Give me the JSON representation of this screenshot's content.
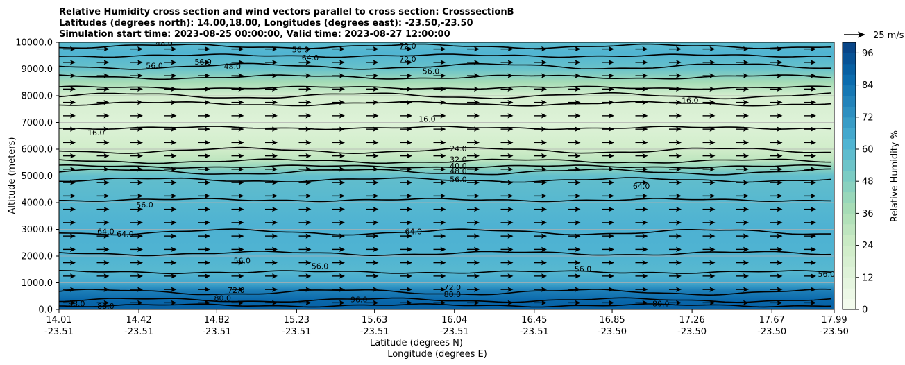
{
  "chart_data": {
    "type": "contour",
    "title_lines": [
      "Relative Humidity cross section and wind vectors parallel to cross section: CrosssectionB",
      "Latitudes (degrees north): 14.00,18.00, Longitudes (degrees east): -23.50,-23.50",
      "Simulation start time: 2023-08-25 00:00:00, Valid time: 2023-08-27 12:00:00"
    ],
    "xlabel_lines": [
      "Latitude (degrees N)",
      "Longitude (degrees E)"
    ],
    "ylabel": "Altitude (meters)",
    "xlim": [
      14.01,
      17.99
    ],
    "ylim": [
      0,
      10000
    ],
    "x_ticks": [
      {
        "lat": "14.01",
        "lon": "-23.51",
        "value": 14.01
      },
      {
        "lat": "14.42",
        "lon": "-23.51",
        "value": 14.42
      },
      {
        "lat": "14.82",
        "lon": "-23.51",
        "value": 14.82
      },
      {
        "lat": "15.23",
        "lon": "-23.51",
        "value": 15.23
      },
      {
        "lat": "15.63",
        "lon": "-23.51",
        "value": 15.63
      },
      {
        "lat": "16.04",
        "lon": "-23.51",
        "value": 16.04
      },
      {
        "lat": "16.45",
        "lon": "-23.51",
        "value": 16.45
      },
      {
        "lat": "16.85",
        "lon": "-23.50",
        "value": 16.85
      },
      {
        "lat": "17.26",
        "lon": "-23.50",
        "value": 17.26
      },
      {
        "lat": "17.67",
        "lon": "-23.50",
        "value": 17.67
      },
      {
        "lat": "17.99",
        "lon": "-23.50",
        "value": 17.99
      }
    ],
    "y_ticks": [
      "0.0",
      "1000.0",
      "2000.0",
      "3000.0",
      "4000.0",
      "5000.0",
      "6000.0",
      "7000.0",
      "8000.0",
      "9000.0",
      "10000.0"
    ],
    "grid": "horizontal",
    "colormap": "GnBu",
    "colorbar": {
      "label": "Relative Humidity %",
      "ticks": [
        "0",
        "12",
        "24",
        "36",
        "48",
        "60",
        "72",
        "84",
        "96"
      ],
      "range": [
        0,
        100
      ]
    },
    "quiver_key": "25 m/s",
    "rh_profile": [
      {
        "z": 0,
        "rh": 90
      },
      {
        "z": 300,
        "rh": 88
      },
      {
        "z": 700,
        "rh": 80
      },
      {
        "z": 1000,
        "rh": 66
      },
      {
        "z": 1500,
        "rh": 60
      },
      {
        "z": 2000,
        "rh": 62
      },
      {
        "z": 3000,
        "rh": 63
      },
      {
        "z": 4000,
        "rh": 60
      },
      {
        "z": 5000,
        "rh": 57
      },
      {
        "z": 5300,
        "rh": 45
      },
      {
        "z": 5600,
        "rh": 30
      },
      {
        "z": 6000,
        "rh": 22
      },
      {
        "z": 7000,
        "rh": 14
      },
      {
        "z": 8000,
        "rh": 20
      },
      {
        "z": 8500,
        "rh": 38
      },
      {
        "z": 9000,
        "rh": 55
      },
      {
        "z": 9600,
        "rh": 62
      },
      {
        "z": 10000,
        "rh": 58
      }
    ],
    "contour_lines": [
      {
        "level": "88.0",
        "z": 150
      },
      {
        "level": "80.0",
        "z": 350
      },
      {
        "level": "72.0",
        "z": 650
      },
      {
        "level": "56.0",
        "z": 1400
      },
      {
        "level": "56.0",
        "z": 2100
      },
      {
        "level": "64.0",
        "z": 2900
      },
      {
        "level": "56.0",
        "z": 4100
      },
      {
        "level": "56.0",
        "z": 4850
      },
      {
        "level": "48.0",
        "z": 5150
      },
      {
        "level": "40.0",
        "z": 5350
      },
      {
        "level": "32.0",
        "z": 5550
      },
      {
        "level": "24.0",
        "z": 5950
      },
      {
        "level": "16.0",
        "z": 6800
      },
      {
        "level": "16.0",
        "z": 7700
      },
      {
        "level": "24.0",
        "z": 8000
      },
      {
        "level": "40.0",
        "z": 8300
      },
      {
        "level": "48.0",
        "z": 8700
      },
      {
        "level": "56.0",
        "z": 9100
      },
      {
        "level": "64.0",
        "z": 9500
      },
      {
        "level": "72.0",
        "z": 9850
      }
    ],
    "contour_labels": [
      {
        "text": "56.0",
        "x": 14.5,
        "z": 9100
      },
      {
        "text": "56.0",
        "x": 14.75,
        "z": 9250
      },
      {
        "text": "48.0",
        "x": 14.9,
        "z": 9080
      },
      {
        "text": "48.0",
        "x": 14.55,
        "z": 9950
      },
      {
        "text": "56.0",
        "x": 15.25,
        "z": 9700
      },
      {
        "text": "64.0",
        "x": 15.3,
        "z": 9400
      },
      {
        "text": "72.0",
        "x": 15.8,
        "z": 9850
      },
      {
        "text": "72.0",
        "x": 15.8,
        "z": 9350
      },
      {
        "text": "56.0",
        "x": 15.92,
        "z": 8900
      },
      {
        "text": "16.0",
        "x": 15.9,
        "z": 7100
      },
      {
        "text": "16.0",
        "x": 14.2,
        "z": 6600
      },
      {
        "text": "16.0",
        "x": 17.25,
        "z": 7800
      },
      {
        "text": "24.0",
        "x": 16.06,
        "z": 6000
      },
      {
        "text": "32.0",
        "x": 16.06,
        "z": 5600
      },
      {
        "text": "40.0",
        "x": 16.06,
        "z": 5350
      },
      {
        "text": "48.0",
        "x": 16.06,
        "z": 5150
      },
      {
        "text": "56.0",
        "x": 16.06,
        "z": 4850
      },
      {
        "text": "64.0",
        "x": 17.0,
        "z": 4600
      },
      {
        "text": "56.0",
        "x": 14.45,
        "z": 3900
      },
      {
        "text": "64.0",
        "x": 14.25,
        "z": 2900
      },
      {
        "text": "64.0",
        "x": 14.35,
        "z": 2800
      },
      {
        "text": "64.0",
        "x": 15.83,
        "z": 2900
      },
      {
        "text": "56.0",
        "x": 14.95,
        "z": 1800
      },
      {
        "text": "56.0",
        "x": 15.35,
        "z": 1600
      },
      {
        "text": "56.0",
        "x": 16.7,
        "z": 1500
      },
      {
        "text": "56.0",
        "x": 17.95,
        "z": 1300
      },
      {
        "text": "72.0",
        "x": 16.03,
        "z": 800
      },
      {
        "text": "80.0",
        "x": 16.03,
        "z": 550
      },
      {
        "text": "80.0",
        "x": 14.85,
        "z": 400
      },
      {
        "text": "72.0",
        "x": 14.92,
        "z": 700
      },
      {
        "text": "88.0",
        "x": 14.1,
        "z": 200
      },
      {
        "text": "88.0",
        "x": 14.25,
        "z": 100
      },
      {
        "text": "96.0",
        "x": 15.55,
        "z": 350
      },
      {
        "text": "80.0",
        "x": 17.1,
        "z": 200
      }
    ]
  }
}
